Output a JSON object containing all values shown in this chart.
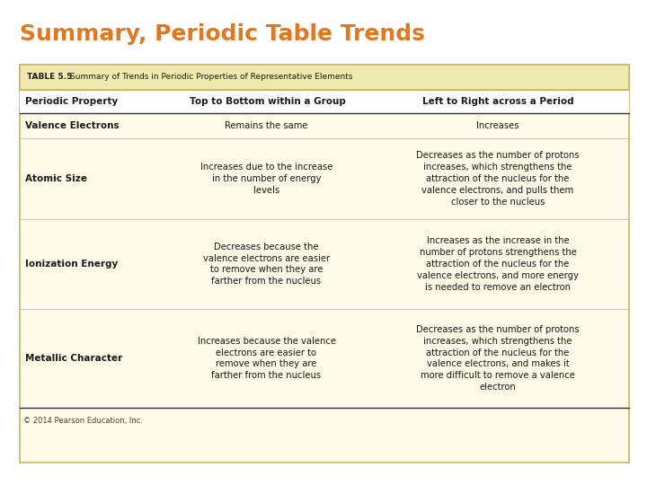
{
  "title": "Summary, Periodic Table Trends",
  "title_color": "#E07820",
  "title_fontsize": 18,
  "table_label": "TABLE 5.5",
  "table_title": "Summary of Trends in Periodic Properties of Representative Elements",
  "table_header_bg": "#F0EAB0",
  "table_bg": "#FDFAE8",
  "table_border": "#C8B860",
  "col_headers": [
    "Periodic Property",
    "Top to Bottom within a Group",
    "Left to Right across a Period"
  ],
  "rows": [
    {
      "property": "Valence Electrons",
      "top_bottom": "Remains the same",
      "left_right": "Increases"
    },
    {
      "property": "Atomic Size",
      "top_bottom": "Increases due to the increase\nin the number of energy\nlevels",
      "left_right": "Decreases as the number of protons\nincreases, which strengthens the\nattraction of the nucleus for the\nvalence electrons, and pulls them\ncloser to the nucleus"
    },
    {
      "property": "Ionization Energy",
      "top_bottom": "Decreases because the\nvalence electrons are easier\nto remove when they are\nfarther from the nucleus",
      "left_right": "Increases as the increase in the\nnumber of protons strengthens the\nattraction of the nucleus for the\nvalence electrons, and more energy\nis needed to remove an electron"
    },
    {
      "property": "Metallic Character",
      "top_bottom": "Increases because the valence\nelectrons are easier to\nremove when they are\nfarther from the nucleus",
      "left_right": "Decreases as the number of protons\nincreases, which strengthens the\nattraction of the nucleus for the\nvalence electrons, and makes it\nmore difficult to remove a valence\nelectron"
    }
  ],
  "copyright": "© 2014 Pearson Education, Inc.",
  "bg_color": "#FFFFFF",
  "text_color": "#1a1a1a"
}
